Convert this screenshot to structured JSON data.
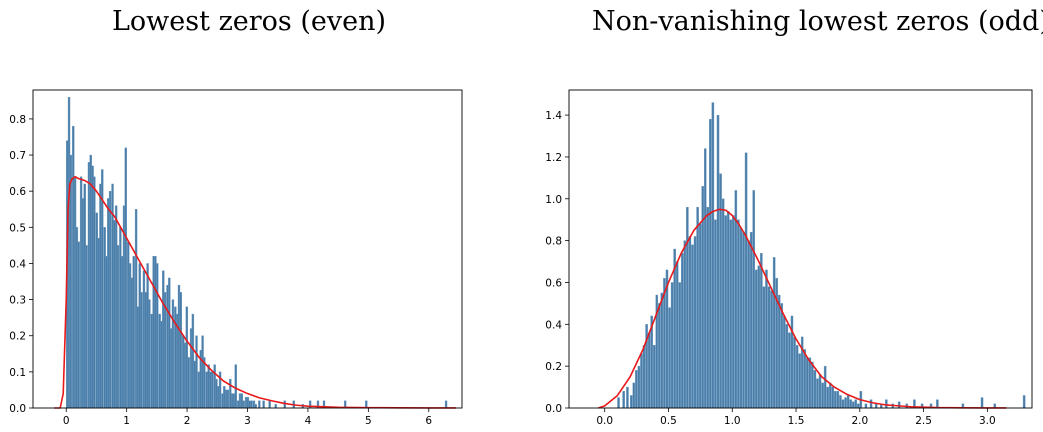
{
  "chart_data": [
    {
      "type": "bar",
      "title": "Lowest zeros (even)",
      "xlabel": "",
      "ylabel": "",
      "xlim": [
        -0.55,
        6.55
      ],
      "ylim": [
        0,
        0.88
      ],
      "xticks": [
        0,
        1,
        2,
        3,
        4,
        5,
        6
      ],
      "yticks": [
        0.0,
        0.1,
        0.2,
        0.3,
        0.4,
        0.5,
        0.6,
        0.7,
        0.8
      ],
      "grid": false,
      "bar_color": "#4a7ea8",
      "curve_color": "#e8191b",
      "histogram": {
        "bin_width": 0.0325,
        "x": [
          0.0,
          0.03,
          0.06,
          0.1,
          0.13,
          0.16,
          0.19,
          0.23,
          0.26,
          0.29,
          0.32,
          0.36,
          0.39,
          0.42,
          0.45,
          0.49,
          0.52,
          0.55,
          0.58,
          0.62,
          0.65,
          0.68,
          0.71,
          0.75,
          0.78,
          0.81,
          0.84,
          0.88,
          0.91,
          0.94,
          0.97,
          1.01,
          1.04,
          1.07,
          1.1,
          1.14,
          1.17,
          1.2,
          1.23,
          1.27,
          1.3,
          1.33,
          1.36,
          1.4,
          1.43,
          1.46,
          1.49,
          1.53,
          1.56,
          1.59,
          1.62,
          1.66,
          1.69,
          1.72,
          1.75,
          1.79,
          1.82,
          1.85,
          1.88,
          1.92,
          1.95,
          1.98,
          2.01,
          2.05,
          2.08,
          2.11,
          2.14,
          2.18,
          2.21,
          2.24,
          2.27,
          2.31,
          2.34,
          2.37,
          2.4,
          2.44,
          2.47,
          2.5,
          2.53,
          2.57,
          2.6,
          2.63,
          2.66,
          2.7,
          2.73,
          2.76,
          2.79,
          2.83,
          2.86,
          2.89,
          2.92,
          2.96,
          2.99,
          3.02,
          3.05,
          3.09,
          3.12,
          3.18,
          3.25,
          3.35,
          3.45,
          3.6,
          3.75,
          3.9,
          4.02,
          4.15,
          4.25,
          4.6,
          4.95,
          6.27
        ],
        "values": [
          0.74,
          0.86,
          0.7,
          0.78,
          0.64,
          0.5,
          0.46,
          0.64,
          0.58,
          0.62,
          0.45,
          0.68,
          0.7,
          0.67,
          0.64,
          0.54,
          0.47,
          0.62,
          0.66,
          0.5,
          0.42,
          0.58,
          0.6,
          0.62,
          0.52,
          0.56,
          0.45,
          0.5,
          0.42,
          0.56,
          0.72,
          0.46,
          0.4,
          0.36,
          0.42,
          0.55,
          0.28,
          0.4,
          0.32,
          0.38,
          0.32,
          0.4,
          0.3,
          0.26,
          0.42,
          0.42,
          0.4,
          0.26,
          0.24,
          0.38,
          0.32,
          0.34,
          0.36,
          0.22,
          0.3,
          0.28,
          0.26,
          0.34,
          0.32,
          0.2,
          0.18,
          0.28,
          0.14,
          0.22,
          0.26,
          0.13,
          0.2,
          0.1,
          0.16,
          0.2,
          0.14,
          0.1,
          0.12,
          0.1,
          0.1,
          0.12,
          0.08,
          0.06,
          0.1,
          0.04,
          0.06,
          0.05,
          0.05,
          0.08,
          0.04,
          0.04,
          0.12,
          0.02,
          0.04,
          0.04,
          0.02,
          0.03,
          0.03,
          0.02,
          0.02,
          0.02,
          0.01,
          0.02,
          0.02,
          0.02,
          0.01,
          0.02,
          0.02,
          0.01,
          0.02,
          0.02,
          0.02,
          0.02,
          0.02,
          0.02
        ]
      },
      "curve": {
        "x": [
          -0.2,
          -0.1,
          -0.05,
          0.0,
          0.03,
          0.06,
          0.1,
          0.15,
          0.2,
          0.3,
          0.4,
          0.5,
          0.6,
          0.7,
          0.8,
          0.9,
          1.0,
          1.2,
          1.4,
          1.6,
          1.8,
          2.0,
          2.2,
          2.4,
          2.6,
          2.8,
          3.0,
          3.2,
          3.4,
          3.6,
          3.8,
          4.0,
          4.5,
          5.0,
          5.5,
          6.0,
          6.45
        ],
        "values": [
          0.0,
          0.0,
          0.04,
          0.3,
          0.55,
          0.62,
          0.635,
          0.64,
          0.635,
          0.63,
          0.62,
          0.6,
          0.575,
          0.55,
          0.53,
          0.5,
          0.47,
          0.41,
          0.35,
          0.29,
          0.235,
          0.185,
          0.14,
          0.105,
          0.075,
          0.055,
          0.04,
          0.028,
          0.02,
          0.013,
          0.008,
          0.005,
          0.002,
          0.001,
          0.0005,
          0.0002,
          0.0001
        ]
      }
    },
    {
      "type": "bar",
      "title": "Non-vanishing lowest zeros (odd)",
      "xlabel": "",
      "ylabel": "",
      "xlim": [
        -0.28,
        3.35
      ],
      "ylim": [
        0,
        1.52
      ],
      "xticks": [
        0.0,
        0.5,
        1.0,
        1.5,
        2.0,
        2.5,
        3.0
      ],
      "yticks": [
        0.0,
        0.2,
        0.4,
        0.6,
        0.8,
        1.0,
        1.2,
        1.4
      ],
      "grid": false,
      "bar_color": "#4a7ea8",
      "curve_color": "#e8191b",
      "histogram": {
        "bin_width": 0.0165,
        "x": [
          0.1,
          0.14,
          0.17,
          0.2,
          0.22,
          0.24,
          0.26,
          0.28,
          0.3,
          0.32,
          0.34,
          0.36,
          0.38,
          0.4,
          0.42,
          0.44,
          0.46,
          0.48,
          0.5,
          0.52,
          0.54,
          0.56,
          0.58,
          0.6,
          0.62,
          0.64,
          0.66,
          0.68,
          0.7,
          0.72,
          0.74,
          0.76,
          0.78,
          0.8,
          0.82,
          0.84,
          0.86,
          0.88,
          0.9,
          0.92,
          0.94,
          0.96,
          0.98,
          1.0,
          1.02,
          1.04,
          1.06,
          1.08,
          1.1,
          1.12,
          1.14,
          1.16,
          1.18,
          1.2,
          1.22,
          1.24,
          1.26,
          1.28,
          1.3,
          1.32,
          1.34,
          1.36,
          1.38,
          1.4,
          1.42,
          1.44,
          1.46,
          1.48,
          1.5,
          1.52,
          1.54,
          1.56,
          1.58,
          1.6,
          1.62,
          1.64,
          1.66,
          1.68,
          1.7,
          1.72,
          1.74,
          1.76,
          1.78,
          1.8,
          1.82,
          1.84,
          1.86,
          1.88,
          1.9,
          1.92,
          1.94,
          1.96,
          1.98,
          2.0,
          2.04,
          2.08,
          2.12,
          2.16,
          2.2,
          2.25,
          2.3,
          2.36,
          2.42,
          2.48,
          2.55,
          2.6,
          2.8,
          2.95,
          3.05,
          3.28
        ],
        "values": [
          0.05,
          0.08,
          0.1,
          0.06,
          0.12,
          0.18,
          0.2,
          0.26,
          0.3,
          0.4,
          0.36,
          0.44,
          0.3,
          0.54,
          0.5,
          0.55,
          0.62,
          0.66,
          0.48,
          0.6,
          0.76,
          0.7,
          0.6,
          0.74,
          0.8,
          0.96,
          0.82,
          0.78,
          0.82,
          0.96,
          0.88,
          1.06,
          1.24,
          0.96,
          1.38,
          1.46,
          0.9,
          1.4,
          1.12,
          1.0,
          0.92,
          0.94,
          0.9,
          0.92,
          1.04,
          0.9,
          0.86,
          0.84,
          1.22,
          0.8,
          0.84,
          1.04,
          0.66,
          0.68,
          0.74,
          0.58,
          0.66,
          0.58,
          0.56,
          0.72,
          0.62,
          0.54,
          0.5,
          0.44,
          0.4,
          0.36,
          0.44,
          0.34,
          0.3,
          0.26,
          0.34,
          0.28,
          0.24,
          0.24,
          0.22,
          0.18,
          0.14,
          0.16,
          0.12,
          0.2,
          0.1,
          0.12,
          0.1,
          0.08,
          0.08,
          0.06,
          0.04,
          0.05,
          0.06,
          0.04,
          0.03,
          0.04,
          0.02,
          0.08,
          0.02,
          0.04,
          0.02,
          0.02,
          0.04,
          0.02,
          0.03,
          0.02,
          0.04,
          0.02,
          0.02,
          0.04,
          0.02,
          0.05,
          0.02,
          0.06
        ]
      },
      "curve": {
        "x": [
          -0.05,
          0.0,
          0.1,
          0.2,
          0.3,
          0.4,
          0.5,
          0.6,
          0.7,
          0.8,
          0.85,
          0.9,
          0.95,
          1.0,
          1.05,
          1.1,
          1.2,
          1.3,
          1.4,
          1.5,
          1.6,
          1.7,
          1.8,
          1.9,
          2.0,
          2.1,
          2.2,
          2.4,
          2.6,
          2.8,
          3.0,
          3.15
        ],
        "values": [
          0.0,
          0.01,
          0.06,
          0.15,
          0.28,
          0.44,
          0.6,
          0.74,
          0.85,
          0.92,
          0.94,
          0.95,
          0.945,
          0.92,
          0.88,
          0.83,
          0.71,
          0.58,
          0.45,
          0.33,
          0.23,
          0.15,
          0.1,
          0.065,
          0.04,
          0.025,
          0.015,
          0.006,
          0.002,
          0.001,
          0.0003,
          0.0001
        ]
      }
    }
  ]
}
